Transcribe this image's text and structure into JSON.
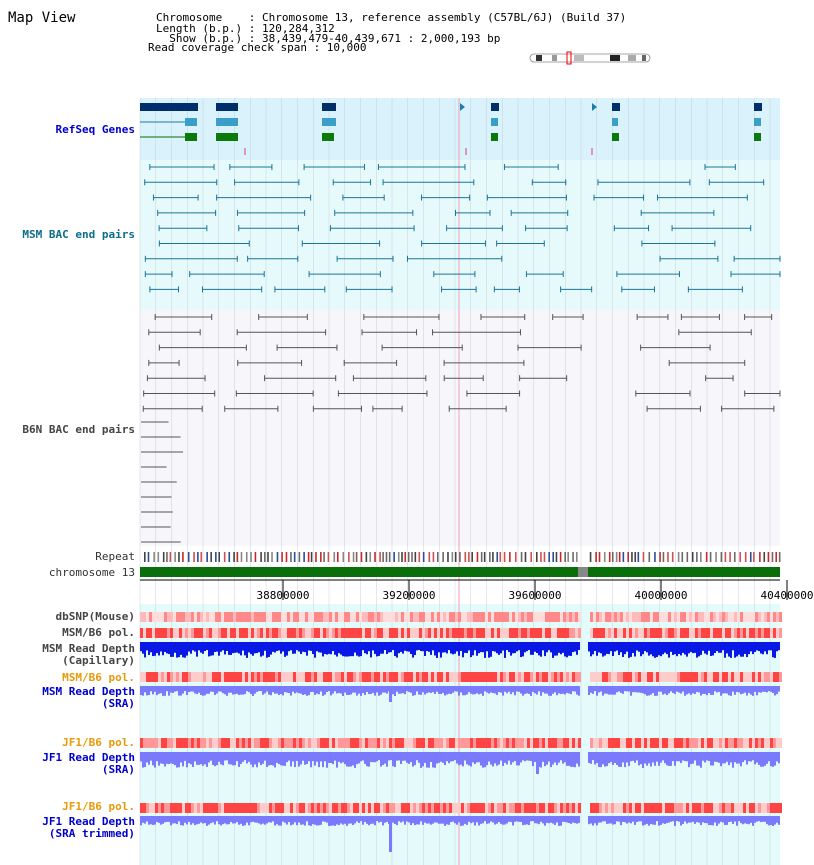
{
  "title": "Map View",
  "info": {
    "chromosome_line": "Chromosome    : Chromosome 13, reference assembly (C57BL/6J) (Build 37)",
    "length_line": "Length (b.p.) : 120,284,312",
    "show_line": "  Show (b.p.) : 38,439,479-40,439,671 : 2,000,193 bp",
    "coverage_line": "Read coverage check span : 10,000"
  },
  "tracks": {
    "refseq": "RefSeq Genes",
    "msm_bac": "MSM BAC end pairs",
    "b6n_bac": "B6N BAC end pairs",
    "repeat": "Repeat",
    "chromosome": "chromosome 13",
    "dbsnp": "dbSNP(Mouse)",
    "msm_pol": "MSM/B6 pol.",
    "msm_depth_cap": "MSM Read Depth\n(Capillary)",
    "msm_pol2": "MSM/B6 pol.",
    "msm_depth_sra": "MSM Read Depth\n(SRA)",
    "jf1_pol": "JF1/B6 pol.",
    "jf1_depth_sra": "JF1 Read Depth\n(SRA)",
    "jf1_pol2": "JF1/B6 pol.",
    "jf1_depth_trim": "JF1 Read Depth\n(SRA trimmed)"
  },
  "axis": {
    "ticks": [
      "38800000",
      "39200000",
      "39600000",
      "40000000",
      "40400000"
    ]
  },
  "colors": {
    "refseq_bg": "#d9f2fb",
    "bac_bg": "#e6fafc",
    "b6n_bg": "#f6f6fb",
    "coverage_bg": "#e4fbfb",
    "chromosome": "#0a6e0a",
    "depth_blue": "#0a18e6",
    "depth_lavender": "#7a7aff"
  }
}
